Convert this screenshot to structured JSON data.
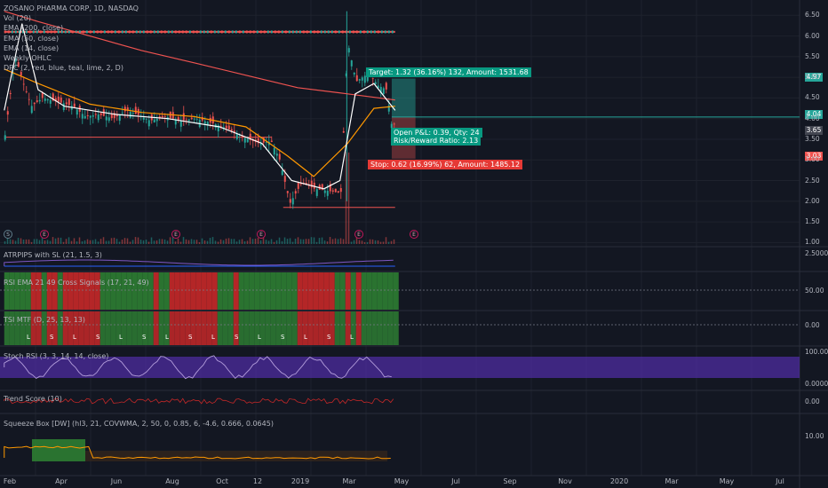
{
  "legend": {
    "symbol": "ZOSANO PHARMA CORP, 1D, NASDAQ",
    "lines": [
      "Vol (20)",
      "EMA (200, close)",
      "EMA (50, close)",
      "EMA (14, close)",
      "Weekly OHLC",
      "DPC (2, red, blue, teal, lime, 2, D)"
    ]
  },
  "order_tags": {
    "target": "Target: 1.32 (36.16%) 132, Amount: 1531.68",
    "pnl": "Open P&L: 0.39, Qty: 24",
    "rr": "Risk/Reward Ratio: 2.13",
    "stop": "Stop: 0.62 (16.99%) 62, Amount: 1485.12"
  },
  "pane_labels": [
    "ATRPIPS with SL (21, 1.5, 3)",
    "RSI EMA 21 49 Cross Signals (17, 21, 49)",
    "TSI MTF (D, 25, 13, 13)",
    "Stoch RSI (3, 3, 14, 14, close)",
    "Trend Score (10)",
    "Squeeze Box [DW] (hl3, 21, COVWMA, 2, 50, 0, 0.85, 6, -4.6, 0.666, 0.0645)"
  ],
  "price_tags": [
    {
      "text": "4.97",
      "color": "#26a69a"
    },
    {
      "text": "4.04",
      "color": "#26a69a"
    },
    {
      "text": "3.65",
      "color": "#434651"
    },
    {
      "text": "3.03",
      "color": "#ef5350"
    }
  ],
  "price_axis_ticks": [
    "6.50",
    "6.00",
    "5.50",
    "5.00",
    "4.50",
    "4.00",
    "3.50",
    "3.00",
    "2.50",
    "2.00",
    "1.50",
    "1.00"
  ],
  "indicator_axis_ticks": [
    "2.5000",
    "50.00",
    "0.00",
    "100.0000",
    "0.0000",
    "0.00",
    "10.00"
  ],
  "x_axis_labels": [
    "Feb",
    "Apr",
    "Jun",
    "Aug",
    "Oct",
    "12",
    "2019",
    "Mar",
    "May",
    "Jul",
    "Sep",
    "Nov",
    "2020",
    "Mar",
    "May",
    "Jul"
  ],
  "events": [
    "S",
    "E",
    "E",
    "E",
    "E",
    "E"
  ],
  "tsi_signals": [
    "L",
    "S",
    "L",
    "S",
    "L",
    "S",
    "L",
    "S",
    "L",
    "S",
    "L",
    "S",
    "L",
    "S",
    "L"
  ],
  "chart_data": {
    "type": "line",
    "title": "ZOSANO PHARMA CORP, 1D, NASDAQ",
    "symbol": "ZOSANO PHARMA CORP",
    "interval": "1D",
    "exchange": "NASDAQ",
    "y_range": [
      0.9,
      6.7
    ],
    "x_range": [
      "2018-01-15",
      "2020-08-15"
    ],
    "close_series": [
      {
        "x": "2018-01-20",
        "y": 3.6
      },
      {
        "x": "2018-02-01",
        "y": 5.5
      },
      {
        "x": "2018-02-10",
        "y": 4.9
      },
      {
        "x": "2018-02-20",
        "y": 4.3
      },
      {
        "x": "2018-03-05",
        "y": 4.5
      },
      {
        "x": "2018-03-25",
        "y": 4.4
      },
      {
        "x": "2018-04-10",
        "y": 4.3
      },
      {
        "x": "2018-04-25",
        "y": 4.05
      },
      {
        "x": "2018-05-10",
        "y": 4.1
      },
      {
        "x": "2018-05-28",
        "y": 4.0
      },
      {
        "x": "2018-06-12",
        "y": 4.2
      },
      {
        "x": "2018-06-25",
        "y": 4.1
      },
      {
        "x": "2018-07-10",
        "y": 3.95
      },
      {
        "x": "2018-07-28",
        "y": 4.05
      },
      {
        "x": "2018-08-15",
        "y": 3.95
      },
      {
        "x": "2018-09-01",
        "y": 4.0
      },
      {
        "x": "2018-09-20",
        "y": 3.9
      },
      {
        "x": "2018-10-10",
        "y": 3.75
      },
      {
        "x": "2018-10-28",
        "y": 3.55
      },
      {
        "x": "2018-11-15",
        "y": 3.4
      },
      {
        "x": "2018-11-30",
        "y": 3.45
      },
      {
        "x": "2018-12-10",
        "y": 3.0
      },
      {
        "x": "2018-12-22",
        "y": 1.95
      },
      {
        "x": "2019-01-05",
        "y": 2.45
      },
      {
        "x": "2019-01-20",
        "y": 2.3
      },
      {
        "x": "2019-02-05",
        "y": 2.25
      },
      {
        "x": "2019-02-20",
        "y": 2.2
      },
      {
        "x": "2019-02-28",
        "y": 5.85
      },
      {
        "x": "2019-03-10",
        "y": 4.9
      },
      {
        "x": "2019-03-25",
        "y": 5.1
      },
      {
        "x": "2019-04-05",
        "y": 4.8
      },
      {
        "x": "2019-04-15",
        "y": 4.7
      },
      {
        "x": "2019-04-22",
        "y": 3.7
      },
      {
        "x": "2019-04-26",
        "y": 4.04
      }
    ],
    "series": [
      {
        "name": "EMA (200, close)",
        "color": "#ef5350",
        "points": [
          [
            "2018-01-20",
            6.6
          ],
          [
            "2018-03-01",
            6.35
          ],
          [
            "2018-05-01",
            6.0
          ],
          [
            "2018-07-01",
            5.65
          ],
          [
            "2018-09-01",
            5.35
          ],
          [
            "2018-11-01",
            5.05
          ],
          [
            "2019-01-01",
            4.75
          ],
          [
            "2019-03-01",
            4.6
          ],
          [
            "2019-04-26",
            4.45
          ]
        ]
      },
      {
        "name": "EMA (50, close)",
        "color": "#ff9800",
        "points": [
          [
            "2018-01-20",
            5.2
          ],
          [
            "2018-03-01",
            4.85
          ],
          [
            "2018-05-01",
            4.35
          ],
          [
            "2018-07-01",
            4.15
          ],
          [
            "2018-09-01",
            4.05
          ],
          [
            "2018-11-01",
            3.8
          ],
          [
            "2018-12-20",
            3.1
          ],
          [
            "2019-01-20",
            2.6
          ],
          [
            "2019-03-01",
            3.4
          ],
          [
            "2019-04-01",
            4.25
          ],
          [
            "2019-04-26",
            4.3
          ]
        ]
      },
      {
        "name": "EMA (14, close)",
        "color": "#ffffff",
        "points": [
          [
            "2018-01-20",
            4.2
          ],
          [
            "2018-02-10",
            6.3
          ],
          [
            "2018-03-01",
            4.7
          ],
          [
            "2018-04-01",
            4.3
          ],
          [
            "2018-06-01",
            4.1
          ],
          [
            "2018-08-01",
            4.0
          ],
          [
            "2018-10-01",
            3.8
          ],
          [
            "2018-11-20",
            3.4
          ],
          [
            "2018-12-25",
            2.5
          ],
          [
            "2019-02-01",
            2.3
          ],
          [
            "2019-02-20",
            2.5
          ],
          [
            "2019-03-10",
            4.6
          ],
          [
            "2019-04-01",
            4.85
          ],
          [
            "2019-04-26",
            4.2
          ]
        ]
      }
    ],
    "levels": [
      {
        "name": "resistance",
        "y": 6.1,
        "from": "2018-01-20",
        "to": "2019-04-26"
      },
      {
        "name": "support",
        "y": 3.55,
        "from": "2018-01-20",
        "to": "2018-12-01"
      },
      {
        "name": "low",
        "y": 1.85,
        "from": "2018-12-15",
        "to": "2019-04-26"
      }
    ],
    "position": {
      "entry": 4.04,
      "target": 4.97,
      "stop": 3.03,
      "current": 3.65,
      "from": "2019-04-22",
      "to": "2019-05-20"
    }
  }
}
